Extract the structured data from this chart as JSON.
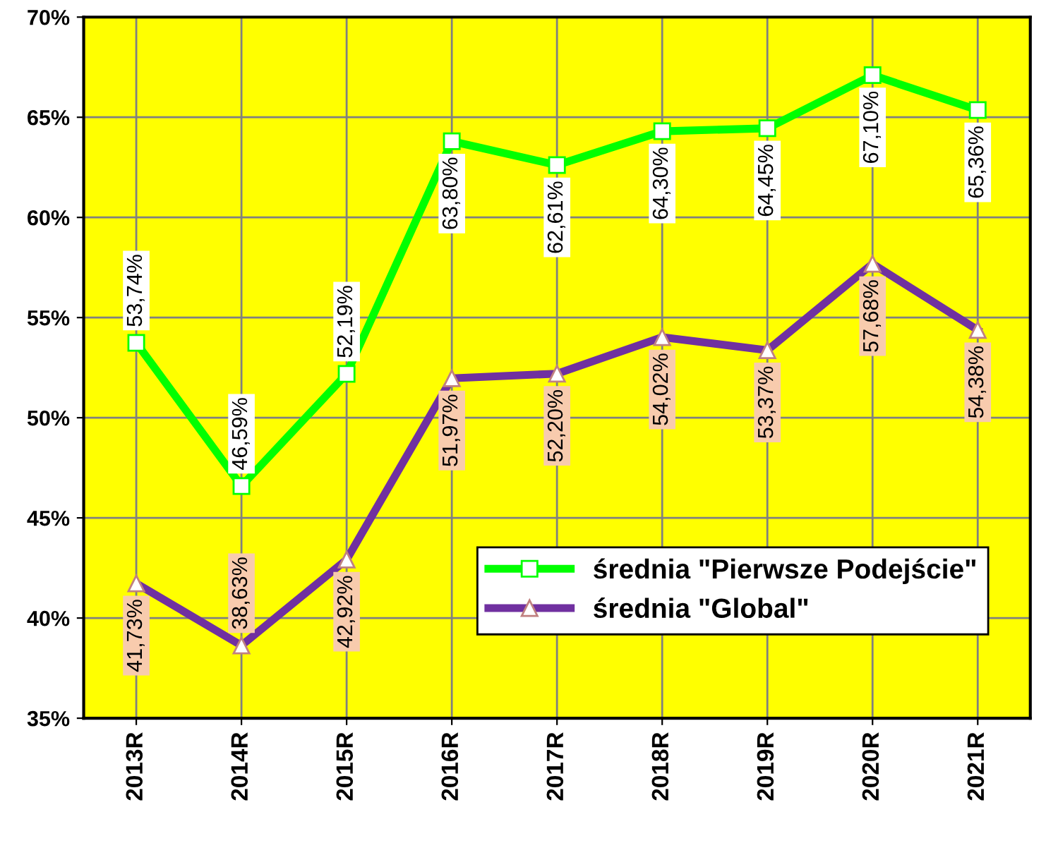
{
  "chart_data": {
    "type": "line",
    "categories": [
      "2013R",
      "2014R",
      "2015R",
      "2016R",
      "2017R",
      "2018R",
      "2019R",
      "2020R",
      "2021R"
    ],
    "series": [
      {
        "name": "średnia \"Pierwsze Podejście\"",
        "color": "#00ff00",
        "marker": "square",
        "values": [
          53.74,
          46.59,
          52.19,
          63.8,
          62.61,
          64.3,
          64.45,
          67.1,
          65.36
        ],
        "value_labels": [
          "53,74%",
          "46,59%",
          "52,19%",
          "63,80%",
          "62,61%",
          "64,30%",
          "64,45%",
          "67,10%",
          "65,36%"
        ]
      },
      {
        "name": "średnia \"Global\"",
        "color": "#7030a0",
        "marker": "triangle",
        "values": [
          41.73,
          38.63,
          42.92,
          51.97,
          52.2,
          54.02,
          53.37,
          57.68,
          54.38
        ],
        "value_labels": [
          "41,73%",
          "38,63%",
          "42,92%",
          "51,97%",
          "52,20%",
          "54,02%",
          "53,37%",
          "57,68%",
          "54,38%"
        ]
      }
    ],
    "ylim": [
      35,
      70
    ],
    "yticks": [
      {
        "value": 35,
        "label": "35%"
      },
      {
        "value": 40,
        "label": "40%"
      },
      {
        "value": 45,
        "label": "45%"
      },
      {
        "value": 50,
        "label": "50%"
      },
      {
        "value": 55,
        "label": "55%"
      },
      {
        "value": 60,
        "label": "60%"
      },
      {
        "value": 65,
        "label": "65%"
      },
      {
        "value": 70,
        "label": "70%"
      }
    ],
    "grid": true,
    "legend": "bottom right",
    "line_style": "solid"
  }
}
